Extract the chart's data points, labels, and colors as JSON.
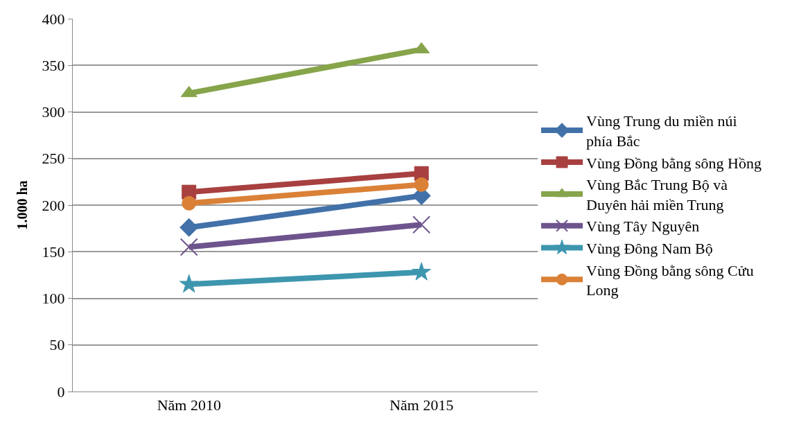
{
  "chart_data": {
    "type": "line",
    "ylabel": "1.000 ha",
    "categories": [
      "Năm 2010",
      "Năm 2015"
    ],
    "series": [
      {
        "name": "Vùng Trung du miền núi phía Bắc",
        "color": "#4271a9",
        "marker": "diamond",
        "values": [
          176,
          210
        ]
      },
      {
        "name": "Vùng Đồng bằng sông Hồng",
        "color": "#a84040",
        "marker": "square",
        "values": [
          214,
          234
        ]
      },
      {
        "name": "Vùng Bắc Trung Bộ và Duyên hải miền Trung",
        "color": "#86a44a",
        "marker": "triangle",
        "values": [
          320,
          367
        ]
      },
      {
        "name": "Vùng Tây Nguyên",
        "color": "#6e548d",
        "marker": "cross",
        "values": [
          155,
          179
        ]
      },
      {
        "name": "Vùng Đông Nam Bộ",
        "color": "#3d96ae",
        "marker": "star",
        "values": [
          115,
          128
        ]
      },
      {
        "name": "Vùng Đồng bằng sông Cửu Long",
        "color": "#da8137",
        "marker": "circle",
        "values": [
          202,
          222
        ]
      }
    ],
    "ylim": [
      0,
      400
    ],
    "yticks": [
      0,
      50,
      100,
      150,
      200,
      250,
      300,
      350,
      400
    ],
    "grid": "y",
    "legend": "right",
    "line_style": "solid"
  }
}
